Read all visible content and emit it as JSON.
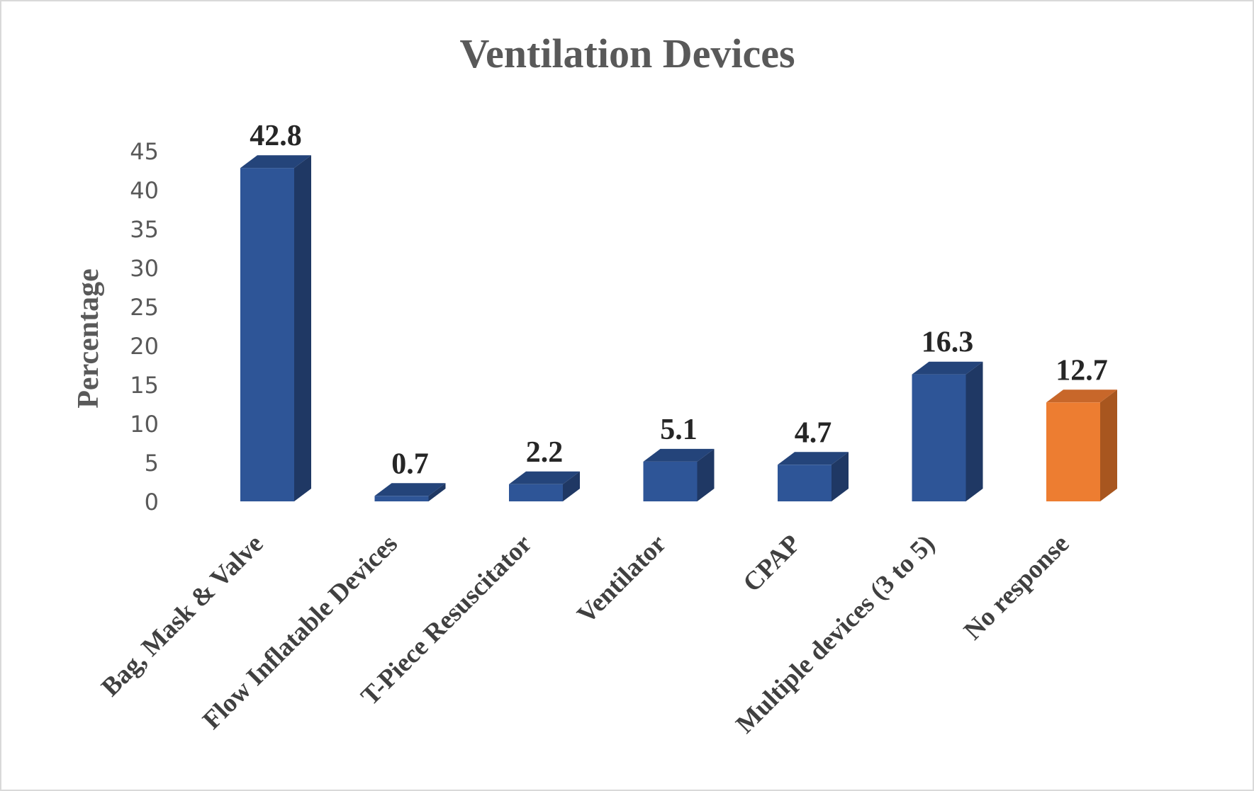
{
  "chart_data": {
    "type": "bar",
    "title": "Ventilation Devices",
    "ylabel": "Percentage",
    "xlabel": "",
    "categories": [
      "Bag, Mask & Valve",
      "Flow Inflatable Devices",
      "T-Piece Resuscitator",
      "Ventilator",
      "CPAP",
      "Multiple devices (3 to 5)",
      "No response"
    ],
    "values": [
      42.8,
      0.7,
      2.2,
      5.1,
      4.7,
      16.3,
      12.7
    ],
    "data_labels": [
      "42.8",
      "0.7",
      "2.2",
      "5.1",
      "4.7",
      "16.3",
      "12.7"
    ],
    "ylim": [
      0,
      45
    ],
    "yticks": [
      0,
      5,
      10,
      15,
      20,
      25,
      30,
      35,
      40,
      45
    ],
    "grid": false,
    "legend": "none",
    "style": "3d-column",
    "colors": {
      "bar_front": "#2e5597",
      "bar_top": "#24447a",
      "bar_side": "#1f3864",
      "highlight_front": "#ed7d31",
      "highlight_top": "#c8672a",
      "highlight_side": "#a8561f"
    },
    "highlight_index": 6
  }
}
